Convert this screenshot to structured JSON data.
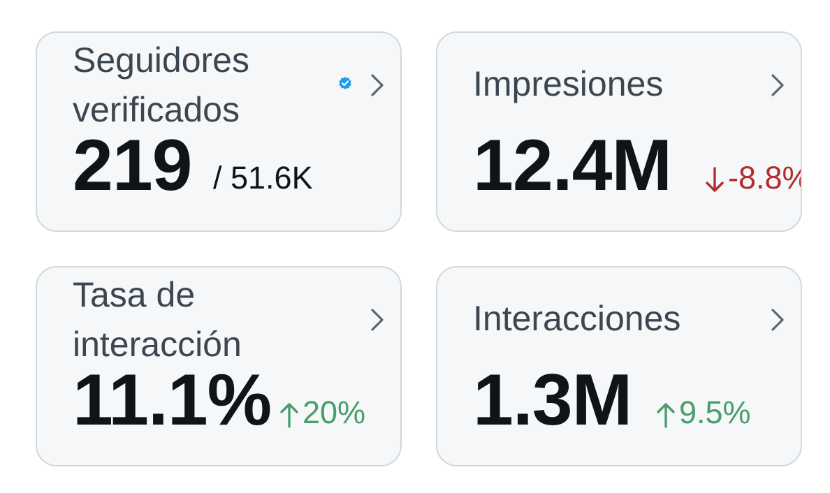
{
  "metrics": [
    {
      "title_line1": "Seguidores",
      "title_line2": "verificados",
      "value": "219",
      "total": "/ 51.6K",
      "badge": "verified-badge-icon",
      "chevron": "chevron-right-icon"
    },
    {
      "title": "Impresiones",
      "value": "12.4M",
      "change": "-8.8%",
      "trend": "down",
      "chevron": "chevron-right-icon"
    },
    {
      "title_line1": "Tasa de",
      "title_line2": "interacción",
      "value": "11.1%",
      "change": "20%",
      "trend": "up",
      "chevron": "chevron-right-icon"
    },
    {
      "title": "Interacciones",
      "value": "1.3M",
      "change": "9.5%",
      "trend": "up",
      "chevron": "chevron-right-icon"
    }
  ],
  "colors": {
    "card_bg": "#f5f7f8",
    "card_border": "#cfd9de",
    "title": "#3c4650",
    "value": "#0f1419",
    "negative": "#b22d2d",
    "positive": "#4a9d6c",
    "verified": "#1d9bf0"
  }
}
